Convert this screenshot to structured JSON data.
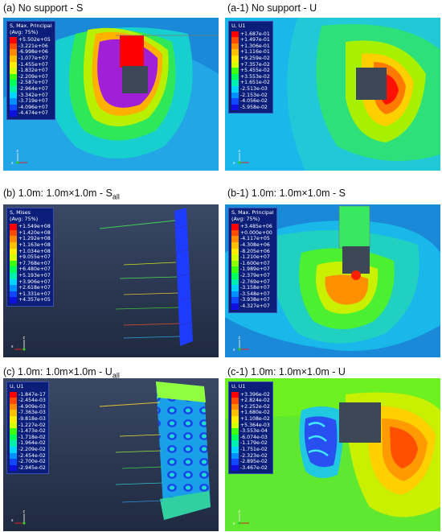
{
  "panels": {
    "a": {
      "caption": "(a)    No support - S",
      "legend_title1": "S, Max. Principal",
      "legend_title2": "(Avg: 75%)",
      "values": [
        "+5.502e+05",
        "-3.221e+06",
        "-6.998e+06",
        "-1.077e+07",
        "-1.455e+07",
        "-1.832e+07",
        "-2.209e+07",
        "-2.587e+07",
        "-2.964e+07",
        "-3.342e+07",
        "-3.719e+07",
        "-4.096e+07",
        "-4.474e+07"
      ]
    },
    "a1": {
      "caption": "(a-1)   No support - U",
      "legend_title1": "U, U1",
      "legend_title2": "",
      "values": [
        "+1.687e-01",
        "+1.497e-01",
        "+1.306e-01",
        "+1.116e-01",
        "+9.259e-02",
        "+7.357e-02",
        "+5.455e-02",
        "+3.553e-02",
        "+1.651e-02",
        "-2.513e-03",
        "-2.153e-02",
        "-4.056e-02",
        "-5.958e-02"
      ]
    },
    "b": {
      "caption_main": "(b)    1.0m: 1.0m×1.0m - S",
      "caption_sub": "all",
      "legend_title1": "S, Mises",
      "legend_title2": "(Avg: 75%)",
      "values": [
        "+1.549e+08",
        "+1.420e+08",
        "+1.292e+08",
        "+1.163e+08",
        "+1.034e+08",
        "+9.055e+07",
        "+7.768e+07",
        "+6.480e+07",
        "+5.193e+07",
        "+3.906e+07",
        "+2.618e+07",
        "+1.331e+07",
        "+4.357e+05"
      ]
    },
    "b1": {
      "caption": "(b-1)   1.0m: 1.0m×1.0m -  S",
      "legend_title1": "S, Max. Principal",
      "legend_title2": "(Avg: 75%)",
      "values": [
        "+3.485e+06",
        "+0.000e+00",
        "-4.117e+05",
        "-4.308e+06",
        "-8.205e+06",
        "-1.210e+07",
        "-1.600e+07",
        "-1.989e+07",
        "-2.379e+07",
        "-2.769e+07",
        "-3.158e+07",
        "-3.548e+07",
        "-3.938e+07",
        "-4.327e+07"
      ]
    },
    "c": {
      "caption_main": "(c)    1.0m: 1.0m×1.0m - U",
      "caption_sub": "all",
      "legend_title1": "U, U1",
      "legend_title2": "",
      "values": [
        "-1.847e-17",
        "-2.454e-03",
        "-4.909e-03",
        "-7.363e-03",
        "-9.818e-03",
        "-1.227e-02",
        "-1.473e-02",
        "-1.718e-02",
        "-1.964e-02",
        "-2.209e-02",
        "-2.454e-02",
        "-2.700e-02",
        "-2.945e-02"
      ]
    },
    "c1": {
      "caption": "(c-1)   1.0m: 1.0m×1.0m - U",
      "legend_title1": "U, U1",
      "legend_title2": "",
      "values": [
        "+3.396e-02",
        "+2.824e-02",
        "+2.252e-02",
        "+1.680e-02",
        "+1.108e-02",
        "+5.364e-03",
        "-3.553e-04",
        "-6.074e-03",
        "-1.179e-02",
        "-1.751e-02",
        "-2.323e-02",
        "-2.895e-02",
        "-3.467e-02"
      ]
    }
  },
  "axis": {
    "z": "z",
    "x": "x"
  },
  "colors": {
    "scale": [
      "#ff0000",
      "#ff4a00",
      "#ff8a00",
      "#ffc000",
      "#ffee00",
      "#d6ff00",
      "#8cff00",
      "#3cff10",
      "#00ff5a",
      "#00f0b0",
      "#00d4ff",
      "#0090ff",
      "#1048ff",
      "#1010e0"
    ],
    "legend_bg": "#0b1f7a",
    "plot_bg_dark": "#28344e",
    "opening": "#3c4856"
  }
}
